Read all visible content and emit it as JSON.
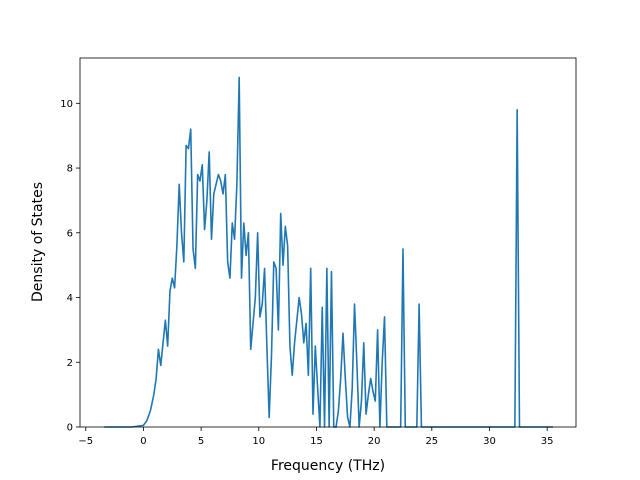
{
  "chart_data": {
    "type": "line",
    "xlabel": "Frequency (THz)",
    "ylabel": "Density of States",
    "xlim": [
      -5.5,
      37.5
    ],
    "ylim": [
      0,
      11.4
    ],
    "x_ticks": [
      -5,
      0,
      5,
      10,
      15,
      20,
      25,
      30,
      35
    ],
    "y_ticks": [
      0,
      2,
      4,
      6,
      8,
      10
    ],
    "grid": false,
    "line_color": "#1f77b4",
    "series": [
      {
        "x": [
          -3.4,
          -1.0,
          0.0,
          0.3,
          0.6,
          0.9,
          1.1,
          1.3,
          1.5,
          1.7,
          1.9,
          2.1,
          2.3,
          2.5,
          2.7,
          2.9,
          3.1,
          3.3,
          3.5,
          3.7,
          3.9,
          4.1,
          4.3,
          4.5,
          4.7,
          4.9,
          5.1,
          5.3,
          5.5,
          5.7,
          5.9,
          6.1,
          6.3,
          6.5,
          6.7,
          6.9,
          7.1,
          7.3,
          7.5,
          7.7,
          7.9,
          8.1,
          8.3,
          8.5,
          8.7,
          8.9,
          9.1,
          9.3,
          9.5,
          9.7,
          9.9,
          10.1,
          10.3,
          10.5,
          10.7,
          10.9,
          11.1,
          11.3,
          11.5,
          11.7,
          11.9,
          12.1,
          12.3,
          12.5,
          12.7,
          12.9,
          13.1,
          13.3,
          13.5,
          13.7,
          13.9,
          14.1,
          14.3,
          14.5,
          14.7,
          14.9,
          15.1,
          15.3,
          15.5,
          15.7,
          15.9,
          16.1,
          16.3,
          16.5,
          16.7,
          16.9,
          17.1,
          17.3,
          17.5,
          17.7,
          17.9,
          18.1,
          18.3,
          18.5,
          18.7,
          18.9,
          19.1,
          19.3,
          19.5,
          19.7,
          19.9,
          20.1,
          20.3,
          20.5,
          20.7,
          20.9,
          21.1,
          21.3,
          21.5,
          21.7,
          21.9,
          22.1,
          22.3,
          22.5,
          22.7,
          22.9,
          23.1,
          23.3,
          23.5,
          23.7,
          23.9,
          24.1,
          24.3,
          24.5,
          24.7,
          32.0,
          32.2,
          32.4,
          32.6,
          32.8,
          35.5
        ],
        "y": [
          0,
          0,
          0.05,
          0.2,
          0.5,
          1.0,
          1.5,
          2.4,
          1.9,
          2.6,
          3.3,
          2.5,
          4.2,
          4.6,
          4.3,
          5.6,
          7.5,
          6.0,
          5.1,
          8.7,
          8.6,
          9.2,
          5.5,
          4.9,
          7.8,
          7.6,
          8.1,
          6.1,
          7.0,
          8.5,
          5.8,
          7.2,
          7.5,
          7.8,
          7.6,
          7.2,
          7.8,
          5.1,
          4.6,
          6.3,
          5.8,
          7.5,
          10.8,
          4.6,
          6.3,
          5.3,
          6.0,
          2.4,
          3.2,
          4.0,
          6.0,
          3.4,
          3.8,
          4.9,
          2.5,
          0.3,
          2.2,
          5.1,
          4.9,
          3.0,
          6.6,
          5.0,
          6.2,
          5.6,
          2.5,
          1.6,
          2.6,
          3.3,
          4.0,
          3.5,
          2.6,
          3.2,
          1.6,
          4.9,
          0.4,
          2.5,
          1.2,
          0.0,
          3.7,
          0.0,
          4.9,
          0.0,
          4.8,
          0.0,
          0.0,
          0.5,
          1.5,
          2.9,
          1.5,
          0.3,
          0.0,
          1.2,
          3.8,
          2.0,
          0.0,
          0.8,
          2.6,
          0.4,
          1.0,
          1.5,
          1.1,
          0.8,
          3.0,
          0.0,
          2.0,
          3.4,
          0.0,
          0.0,
          0.0,
          0.0,
          0.0,
          0.0,
          0.0,
          5.5,
          0.0,
          0.0,
          0.0,
          0.0,
          0.0,
          0.0,
          3.8,
          0.0,
          0.0,
          0.0,
          0.0,
          0.0,
          0.0,
          9.8,
          0.0,
          0.0,
          0.0
        ]
      }
    ]
  }
}
